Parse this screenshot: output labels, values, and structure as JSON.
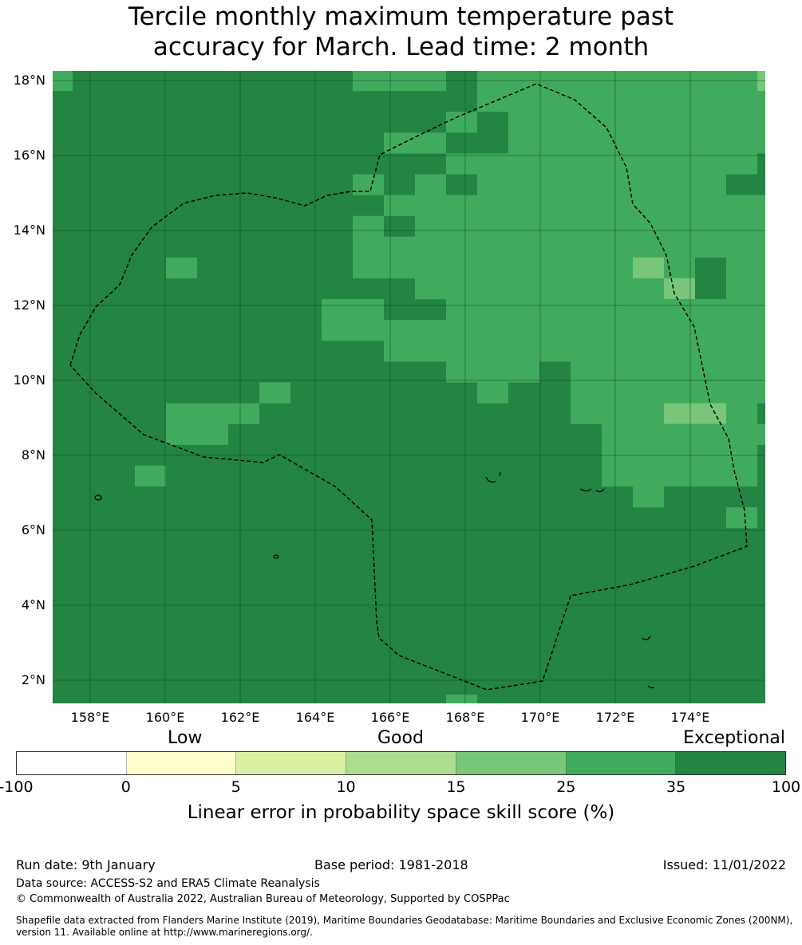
{
  "title": {
    "line1": "Tercile monthly maximum temperature past",
    "line2": "accuracy for March. Lead time: 2 month"
  },
  "map": {
    "lat_labels": [
      "18°N",
      "16°N",
      "14°N",
      "12°N",
      "10°N",
      "8°N",
      "6°N",
      "4°N",
      "2°N"
    ],
    "lon_labels": [
      "158°E",
      "160°E",
      "162°E",
      "164°E",
      "166°E",
      "168°E",
      "170°E",
      "172°E",
      "174°E"
    ],
    "category_colors": {
      "D": "#238443",
      "M": "#41ab5d",
      "L": "#78c679"
    },
    "category_meaning": {
      "D": "35-100",
      "M": "25-35",
      "L": "15-25"
    },
    "grid": [
      "MDDDDDDDDDMMMDMMMMMMMMML",
      "DDDDDDDDDDDDDDMMMMMMMMMM",
      "DDDDDDDDDDDDDMDMMMMMMMMM",
      "DDDDDDDDDDDMMDDMMMMMMMMM",
      "DDDDDDDDDDDDDMMMMMMMMMMD",
      "DDDDDDDDDDMDMDMMMMMMMMDD",
      "DDDDDDDDDDDMMMMMMMMMMMMM",
      "DDDDDDDDDDMDMMMMMMMMMMMM",
      "DDDDDDDDDDMMMMMMMMMMMMMM",
      "DDDDMDDDDDMMMMMMMMMLMDMM",
      "DDDDDDDDDDDDMMMMMMMMLDMM",
      "DDDDDDDDDMMDDMMMMMMMMMMM",
      "DDDDDDDDDMMMMMMMMMMMMMMM",
      "DDDDDDDDDDDMMMMMMMMMMMMM",
      "DDDDDDDDDDDDDMMMDMMMMMMM",
      "DDDDDDDMDDDDDDMDDMMMMMMM",
      "DDDDMMMDDDDDDDDDDMMMLLMD",
      "DDDDMMDDDDDDDDDDDDMMMMMM",
      "DDDDDDDDDDDDDDDDDDMMMMMD",
      "DDDMDDDDDDDDDDDDDDMMMMMD",
      "DDDDDDDDDDDDDDDDDDDMDDDD",
      "DDDDDDDDDDDDDDDDDDDDDDMD",
      "DDDDDDDDDDDDDDDDDDDDDDDD",
      "DDDDDDDDDDDDDDDDDDDDDDDD",
      "DDDDDDDDDDDDDDDDDDDDDDDD",
      "DDDDDDDDDDDDDDDDDDDDDDDD",
      "DDDDDDDDDDDDDDDDDDDDDDDD",
      "DDDDDDDDDDDDDDDDDDDDDDDD",
      "DDDDDDDDDDDDDDDDDDDDDDDD",
      "DDDDDDDDDDDDDDDDDDDDDDDD",
      "DDDDDDDDDDDDDMDDDDDDDDDD"
    ]
  },
  "colorbar": {
    "category_labels": {
      "low": "Low",
      "good": "Good",
      "exceptional": "Exceptional"
    },
    "colors": [
      "#ffffff",
      "#ffffcc",
      "#d9f0a3",
      "#addd8e",
      "#78c679",
      "#41ab5d",
      "#238443"
    ],
    "ticks": [
      "-100",
      "0",
      "5",
      "10",
      "15",
      "25",
      "35",
      "100"
    ],
    "title": "Linear error in probability space skill score (%)"
  },
  "footer": {
    "run_date": "Run date: 9th January",
    "base_period": "Base period: 1981-2018",
    "issued": "Issued: 11/01/2022",
    "data_source": "Data source: ACCESS-S2 and ERA5 Climate Reanalysis",
    "copyright": "© Commonwealth of Australia 2022, Australian Bureau of Meteorology, Supported by COSPPac",
    "shapefile_line1": "Shapefile data extracted from Flanders Marine Institute (2019), Maritime Boundaries Geodatabase: Maritime Boundaries and Exclusive Economic Zones (200NM),",
    "shapefile_line2": "version 11. Available online at http://www.marineregions.org/."
  }
}
